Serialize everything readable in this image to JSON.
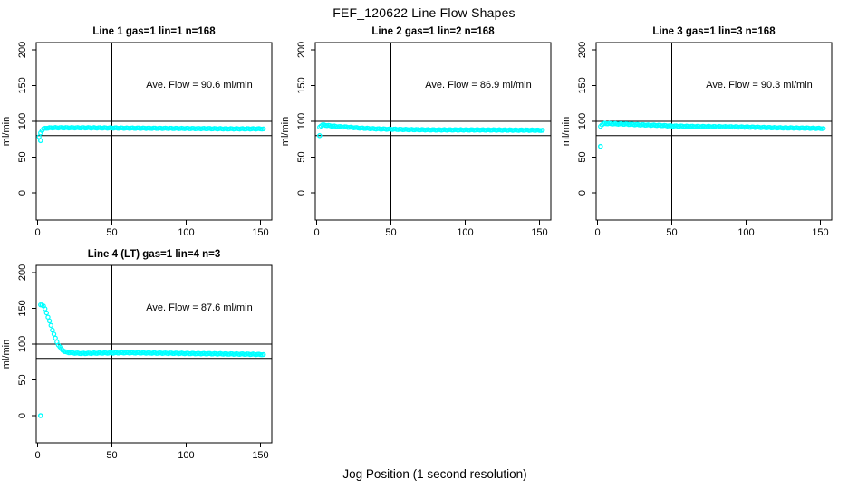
{
  "figure": {
    "title": "FEF_120622  Line Flow Shapes",
    "xlabel": "Jog Position (1 second resolution)",
    "background_color": "#ffffff",
    "point_color": "#00ffff",
    "axis_color": "#000000"
  },
  "chart_data": [
    {
      "type": "scatter",
      "title": "Line 1 gas=1 lin=1 n=168",
      "annotation": "Ave. Flow =  90.6  ml/min",
      "ave_flow_ml_min": 90.6,
      "n": 168,
      "ylabel": "ml/min",
      "x_ticks": [
        0,
        50,
        100,
        150
      ],
      "y_ticks": [
        0,
        50,
        100,
        150,
        200
      ],
      "xlim": [
        -1,
        157.5
      ],
      "ylim": [
        -38,
        210
      ],
      "h_ref_lines": [
        80,
        100
      ],
      "v_ref_line": 50,
      "grid": false,
      "legend": false,
      "profile": [
        [
          1,
          78
        ],
        [
          2,
          84
        ],
        [
          3,
          87.5
        ],
        [
          4,
          89.5
        ],
        [
          6,
          90.5
        ],
        [
          10,
          91
        ],
        [
          30,
          91
        ],
        [
          60,
          90.5
        ],
        [
          100,
          90
        ],
        [
          130,
          89.5
        ],
        [
          152,
          89.5
        ]
      ],
      "outliers": [
        [
          2,
          73
        ]
      ]
    },
    {
      "type": "scatter",
      "title": "Line 2 gas=1 lin=2 n=168",
      "annotation": "Ave. Flow =  86.9  ml/min",
      "ave_flow_ml_min": 86.9,
      "n": 168,
      "ylabel": "ml/min",
      "x_ticks": [
        0,
        50,
        100,
        150
      ],
      "y_ticks": [
        0,
        50,
        100,
        150,
        200
      ],
      "xlim": [
        -1,
        157.5
      ],
      "ylim": [
        -38,
        210
      ],
      "h_ref_lines": [
        80,
        100
      ],
      "v_ref_line": 50,
      "grid": false,
      "legend": false,
      "profile": [
        [
          2,
          92
        ],
        [
          3,
          94
        ],
        [
          4,
          95
        ],
        [
          6,
          94.5
        ],
        [
          10,
          93.5
        ],
        [
          15,
          92.5
        ],
        [
          20,
          92
        ],
        [
          30,
          90.5
        ],
        [
          40,
          89.5
        ],
        [
          60,
          88.5
        ],
        [
          80,
          88
        ],
        [
          110,
          88
        ],
        [
          152,
          87.5
        ]
      ],
      "outliers": [
        [
          2,
          80
        ]
      ]
    },
    {
      "type": "scatter",
      "title": "Line 3 gas=1 lin=3 n=168",
      "annotation": "Ave. Flow =  90.3  ml/min",
      "ave_flow_ml_min": 90.3,
      "n": 168,
      "ylabel": "ml/min",
      "x_ticks": [
        0,
        50,
        100,
        150
      ],
      "y_ticks": [
        0,
        50,
        100,
        150,
        200
      ],
      "xlim": [
        -1,
        157.5
      ],
      "ylim": [
        -38,
        210
      ],
      "h_ref_lines": [
        80,
        100
      ],
      "v_ref_line": 50,
      "grid": false,
      "legend": false,
      "profile": [
        [
          2,
          93
        ],
        [
          3,
          95.5
        ],
        [
          5,
          97
        ],
        [
          10,
          96.5
        ],
        [
          20,
          96
        ],
        [
          30,
          95
        ],
        [
          40,
          94.5
        ],
        [
          50,
          93.5
        ],
        [
          60,
          93
        ],
        [
          80,
          92.5
        ],
        [
          100,
          92
        ],
        [
          120,
          91
        ],
        [
          140,
          90.5
        ],
        [
          152,
          90
        ]
      ],
      "outliers": [
        [
          2,
          65
        ]
      ]
    },
    {
      "type": "scatter",
      "title": "Line 4 (LT) gas=1 lin=4 n=3",
      "annotation": "Ave. Flow =  87.6  ml/min",
      "ave_flow_ml_min": 87.6,
      "n": 3,
      "ylabel": "ml/min",
      "x_ticks": [
        0,
        50,
        100,
        150
      ],
      "y_ticks": [
        0,
        50,
        100,
        150,
        200
      ],
      "xlim": [
        -1,
        157.5
      ],
      "ylim": [
        -38,
        210
      ],
      "h_ref_lines": [
        80,
        100
      ],
      "v_ref_line": 50,
      "grid": false,
      "legend": false,
      "profile": [
        [
          2,
          155
        ],
        [
          3,
          155
        ],
        [
          4,
          153
        ],
        [
          5,
          149
        ],
        [
          6,
          144
        ],
        [
          7,
          138
        ],
        [
          8,
          132
        ],
        [
          9,
          126
        ],
        [
          10,
          120
        ],
        [
          11,
          114
        ],
        [
          12,
          108
        ],
        [
          13,
          103
        ],
        [
          14,
          99
        ],
        [
          15,
          96
        ],
        [
          16,
          93
        ],
        [
          17,
          91.5
        ],
        [
          18,
          90
        ],
        [
          19,
          89
        ],
        [
          20,
          88.5
        ],
        [
          25,
          87.5
        ],
        [
          30,
          87
        ],
        [
          40,
          87.5
        ],
        [
          60,
          88
        ],
        [
          80,
          87.5
        ],
        [
          100,
          87
        ],
        [
          120,
          86.5
        ],
        [
          140,
          86
        ],
        [
          152,
          85.5
        ]
      ],
      "outliers": [
        [
          2,
          0
        ]
      ]
    }
  ]
}
